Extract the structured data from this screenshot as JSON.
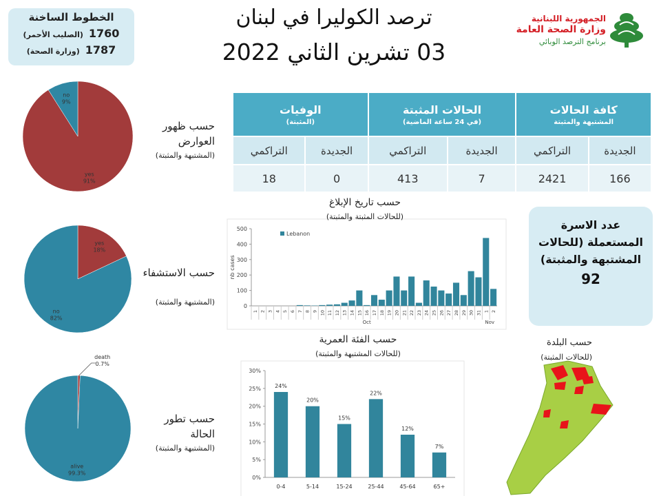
{
  "header": {
    "title": "ترصد الكوليرا في لبنان",
    "date": "03 تشرين الثاني 2022"
  },
  "logo": {
    "lines": [
      "الجمهورية اللبنانية",
      "وزارة الصحة العامة",
      "برنامج الترصد الوبائي"
    ]
  },
  "hotline": {
    "title": "الخطوط الساخنة",
    "entries": [
      {
        "number": "1760",
        "label": "(الصليب الأحمر)"
      },
      {
        "number": "1787",
        "label": "(وزارة الصحة)"
      }
    ]
  },
  "table": {
    "groups": [
      {
        "title": "كافة الحالات",
        "subtitle": "المشتبهة والمثبتة"
      },
      {
        "title": "الحالات المثبتة",
        "subtitle": "(في 24 ساعة الماضية)"
      },
      {
        "title": "الوفيات",
        "subtitle": "(المثبتة)"
      }
    ],
    "columns": [
      "الجديدة",
      "التراكمي",
      "الجديدة",
      "التراكمي",
      "الجديدة",
      "التراكمي"
    ],
    "values": [
      166,
      2421,
      7,
      413,
      0,
      18
    ]
  },
  "family_box": {
    "title": "عدد الاسرة المستعملة (للحالات المشتبهة والمثبتة)",
    "value": 92
  },
  "map": {
    "title": "حسب البلدة",
    "subtitle": "(للحالات المثبتة)"
  },
  "chart_data": [
    {
      "type": "pie",
      "title": "حسب ظهور العوارض",
      "subtitle": "(المشتبهة والمثبتة)",
      "categories": [
        "yes",
        "no"
      ],
      "values": [
        91,
        9
      ],
      "value_labels": [
        "91%",
        "9%"
      ],
      "colors": [
        "#a23b3b",
        "#2f87a3"
      ]
    },
    {
      "type": "pie",
      "title": "حسب الاستشفاء",
      "subtitle": "(المشتبهة والمثبتة)",
      "categories": [
        "yes",
        "no"
      ],
      "values": [
        18,
        82
      ],
      "value_labels": [
        "18%",
        "82%"
      ],
      "colors": [
        "#a23b3b",
        "#2f87a3"
      ]
    },
    {
      "type": "pie",
      "title": "حسب تطور الحالة",
      "subtitle": "(المشتبهة والمثبتة)",
      "categories": [
        "death",
        "alive"
      ],
      "values": [
        0.7,
        99.3
      ],
      "value_labels": [
        "0.7%",
        "99.3%"
      ],
      "colors": [
        "#a23b3b",
        "#2f87a3"
      ]
    },
    {
      "type": "bar",
      "title": "حسب تاريخ الإبلاغ",
      "subtitle": "(للحالات المثبتة والمثبتة)",
      "y_label": "nb cases",
      "category_groups": [
        {
          "label": "Oct",
          "categories": [
            "1",
            "2",
            "3",
            "4",
            "5",
            "6",
            "7",
            "8",
            "9",
            "10",
            "11",
            "12",
            "13",
            "14",
            "15",
            "16",
            "17",
            "18",
            "19",
            "20",
            "21",
            "22",
            "23",
            "24",
            "25",
            "26",
            "27",
            "28",
            "29",
            "30",
            "31"
          ]
        },
        {
          "label": "Nov",
          "categories": [
            "1",
            "2"
          ]
        }
      ],
      "series": [
        {
          "name": "Lebanon",
          "color": "#31859c",
          "values": [
            0,
            0,
            0,
            0,
            0,
            0,
            5,
            3,
            2,
            5,
            8,
            10,
            20,
            35,
            100,
            5,
            70,
            40,
            100,
            190,
            100,
            190,
            20,
            165,
            125,
            100,
            80,
            150,
            70,
            225,
            185,
            440,
            110
          ]
        }
      ],
      "ylim": [
        0,
        500
      ],
      "yticks": [
        0,
        100,
        200,
        300,
        400,
        500
      ],
      "legend": "top-left"
    },
    {
      "type": "bar",
      "title": "حسب الفئة العمرية",
      "subtitle": "(للحالات المشتبهة والمثبتة)",
      "categories": [
        "0-4",
        "5-14",
        "15-24",
        "25-44",
        "45-64",
        "65+"
      ],
      "values": [
        24,
        20,
        15,
        22,
        12,
        7
      ],
      "value_labels": [
        "24%",
        "20%",
        "15%",
        "22%",
        "12%",
        "7%"
      ],
      "color": "#31859c",
      "ylim": [
        0,
        30
      ],
      "yticks": [
        {
          "value": 0,
          "label": "0%"
        },
        {
          "value": 5,
          "label": "5%"
        },
        {
          "value": 10,
          "label": "10%"
        },
        {
          "value": 15,
          "label": "15%"
        },
        {
          "value": 20,
          "label": "20%"
        },
        {
          "value": 25,
          "label": "25%"
        },
        {
          "value": 30,
          "label": "30%"
        }
      ]
    }
  ]
}
